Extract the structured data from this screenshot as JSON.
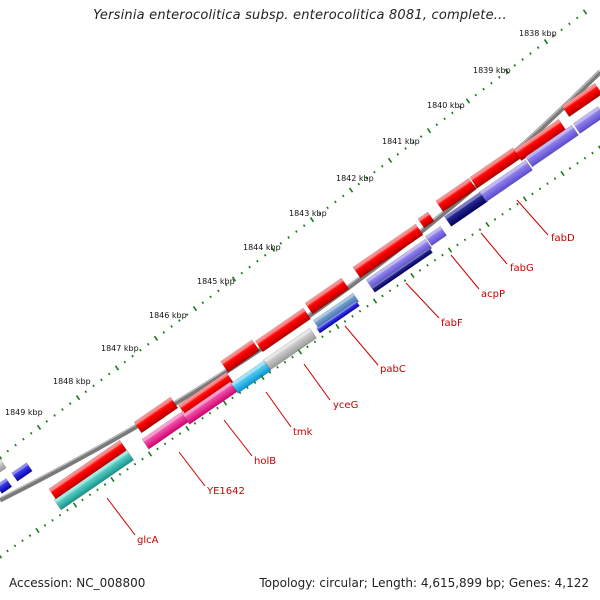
{
  "title": "Yersinia enterocolitica subsp. enterocolitica 8081, complete...",
  "footer": {
    "accession": "Accession: NC_008800",
    "summary": "Topology: circular; Length: 4,615,899 bp; Genes: 4,122"
  },
  "kbp_labels": [
    "1838 kbp",
    "1839 kbp",
    "1840 kbp",
    "1841 kbp",
    "1842 kbp",
    "1843 kbp",
    "1844 kbp",
    "1845 kbp",
    "1846 kbp",
    "1847 kbp",
    "1848 kbp",
    "1849 kbp"
  ],
  "gene_labels": [
    "fabD",
    "fabG",
    "acpP",
    "fabF",
    "pabC",
    "yceG",
    "tmk",
    "holB",
    "YE1642",
    "glcA"
  ],
  "colors": {
    "backbone": "#808080",
    "cds": "#ff0000",
    "ticks": "#1a7a1a",
    "gene_label": "#cc0000",
    "cog_blue": "#0000ee",
    "cog_navy": "#000080",
    "cog_slate": "#7b68ee",
    "cog_magenta": "#ff1493",
    "cog_cyan": "#00bfff",
    "cog_teal": "#20b2aa",
    "cog_grey": "#bebebe"
  }
}
